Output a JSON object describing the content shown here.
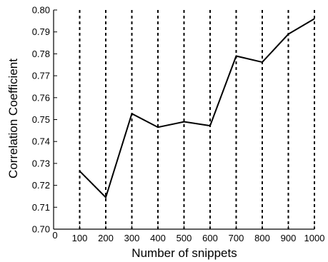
{
  "chart_data": {
    "type": "line",
    "title": "",
    "xlabel": "Number of snippets",
    "ylabel": "Correlation Coefficient",
    "xlim": [
      0,
      1000
    ],
    "ylim": [
      0.7,
      0.8
    ],
    "xticks": [
      0,
      100,
      200,
      300,
      400,
      500,
      600,
      700,
      800,
      900,
      1000
    ],
    "xtick_labels": [
      "0",
      "100",
      "200",
      "300",
      "400",
      "500",
      "600",
      "700",
      "800",
      "900",
      "1000"
    ],
    "yticks": [
      0.7,
      0.71,
      0.72,
      0.73,
      0.74,
      0.75,
      0.76,
      0.77,
      0.78,
      0.79,
      0.8
    ],
    "ytick_labels": [
      "0.70",
      "0.71",
      "0.72",
      "0.73",
      "0.74",
      "0.75",
      "0.76",
      "0.77",
      "0.78",
      "0.79",
      "0.80"
    ],
    "vertical_dashed_lines_at": [
      100,
      200,
      300,
      400,
      500,
      600,
      700,
      800,
      900,
      1000
    ],
    "grid": false,
    "series": [
      {
        "x": [
          100,
          200,
          300,
          400,
          500,
          600,
          700,
          800,
          900,
          1000
        ],
        "values": [
          0.7265,
          0.7145,
          0.7527,
          0.7465,
          0.749,
          0.7472,
          0.779,
          0.7762,
          0.789,
          0.796
        ],
        "color": "#000000"
      }
    ]
  }
}
